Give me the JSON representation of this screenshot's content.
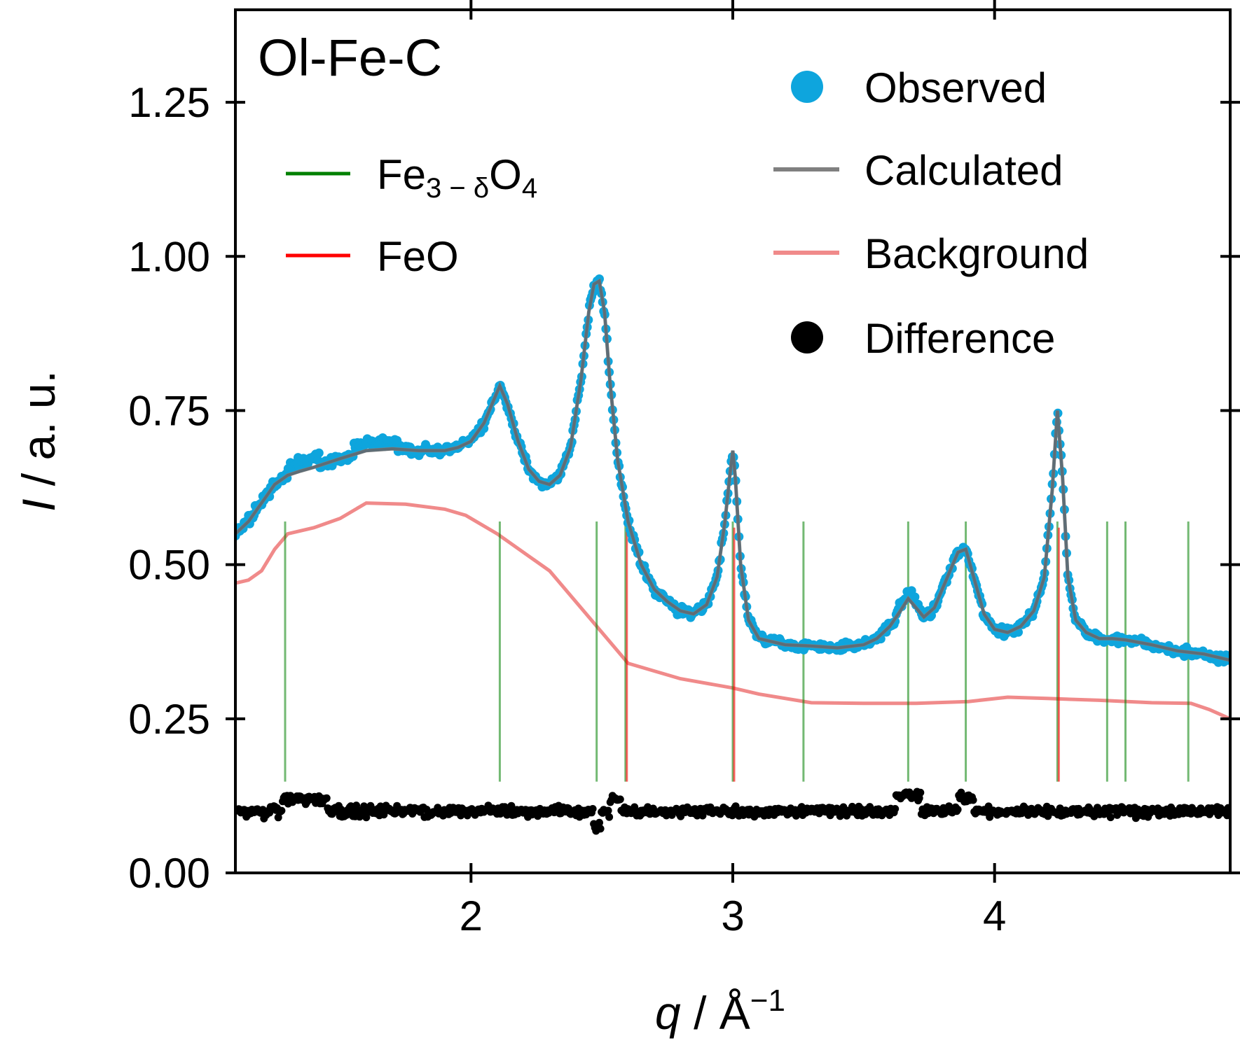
{
  "chart_data": {
    "type": "scatter",
    "panel_label": "Ol-Fe-C",
    "xlabel": {
      "symbol": "q",
      "sep": " / ",
      "unit": "Å",
      "exp": "−1"
    },
    "ylabel": {
      "symbol": "I",
      "sep": " / ",
      "unit": "a. u."
    },
    "xlim": [
      1.1,
      4.9
    ],
    "ylim": [
      0.0,
      1.4
    ],
    "x_ticks": [
      2,
      3,
      4
    ],
    "x_tick_labels": [
      "2",
      "3",
      "4"
    ],
    "y_ticks": [
      0.0,
      0.25,
      0.5,
      0.75,
      1.0,
      1.25
    ],
    "y_tick_labels": [
      "0.00",
      "0.25",
      "0.50",
      "0.75",
      "1.00",
      "1.25"
    ],
    "grid": false,
    "legend_left": [
      {
        "label": "Fe",
        "sub": "3 − δ",
        "tail": "O",
        "sub2": "4",
        "color": "#008000",
        "kind": "line"
      },
      {
        "label": "FeO",
        "sub": "",
        "tail": "",
        "sub2": "",
        "color": "#ff0000",
        "kind": "line"
      }
    ],
    "legend_right": [
      {
        "label": "Observed",
        "color": "#0ea5dd",
        "kind": "marker"
      },
      {
        "label": "Calculated",
        "color": "#808080",
        "kind": "line"
      },
      {
        "label": "Background",
        "color": "#f08a8a",
        "kind": "line"
      },
      {
        "label": "Difference",
        "color": "#000000",
        "kind": "marker"
      }
    ],
    "colors": {
      "observed": "#0ea5dd",
      "calculated": "#808080",
      "background": "#f08a8a",
      "difference": "#000000",
      "fe3o4_ticks": "#008000",
      "feo_ticks": "#ff0000"
    },
    "calculated": {
      "x": [
        1.1,
        1.15,
        1.2,
        1.25,
        1.3,
        1.35,
        1.4,
        1.5,
        1.6,
        1.7,
        1.8,
        1.9,
        1.95,
        2.0,
        2.05,
        2.08,
        2.11,
        2.14,
        2.18,
        2.22,
        2.26,
        2.3,
        2.34,
        2.38,
        2.42,
        2.45,
        2.47,
        2.49,
        2.51,
        2.53,
        2.56,
        2.6,
        2.65,
        2.7,
        2.75,
        2.8,
        2.85,
        2.9,
        2.94,
        2.97,
        2.99,
        3.0,
        3.01,
        3.03,
        3.06,
        3.1,
        3.2,
        3.3,
        3.4,
        3.5,
        3.55,
        3.6,
        3.64,
        3.67,
        3.7,
        3.73,
        3.77,
        3.82,
        3.86,
        3.89,
        3.92,
        3.96,
        4.0,
        4.05,
        4.1,
        4.15,
        4.19,
        4.22,
        4.24,
        4.26,
        4.28,
        4.31,
        4.35,
        4.4,
        4.45,
        4.5,
        4.6,
        4.7,
        4.8,
        4.9
      ],
      "y": [
        0.55,
        0.57,
        0.6,
        0.63,
        0.645,
        0.652,
        0.658,
        0.672,
        0.685,
        0.688,
        0.685,
        0.685,
        0.69,
        0.7,
        0.73,
        0.76,
        0.79,
        0.76,
        0.7,
        0.655,
        0.635,
        0.63,
        0.645,
        0.69,
        0.8,
        0.91,
        0.955,
        0.96,
        0.91,
        0.8,
        0.67,
        0.57,
        0.5,
        0.46,
        0.44,
        0.425,
        0.42,
        0.435,
        0.48,
        0.57,
        0.65,
        0.685,
        0.64,
        0.5,
        0.41,
        0.38,
        0.37,
        0.368,
        0.365,
        0.37,
        0.38,
        0.4,
        0.425,
        0.445,
        0.43,
        0.415,
        0.43,
        0.48,
        0.52,
        0.525,
        0.48,
        0.42,
        0.395,
        0.39,
        0.4,
        0.425,
        0.48,
        0.62,
        0.75,
        0.64,
        0.48,
        0.41,
        0.39,
        0.38,
        0.38,
        0.378,
        0.37,
        0.36,
        0.355,
        0.345
      ]
    },
    "background": {
      "x": [
        1.1,
        1.15,
        1.2,
        1.25,
        1.3,
        1.4,
        1.5,
        1.6,
        1.75,
        1.9,
        1.98,
        2.1,
        2.3,
        2.5,
        2.6,
        2.8,
        3.0,
        3.1,
        3.3,
        3.5,
        3.7,
        3.9,
        4.05,
        4.2,
        4.4,
        4.6,
        4.75,
        4.82,
        4.9
      ],
      "y": [
        0.47,
        0.475,
        0.49,
        0.525,
        0.55,
        0.56,
        0.575,
        0.6,
        0.598,
        0.59,
        0.58,
        0.55,
        0.49,
        0.39,
        0.34,
        0.315,
        0.3,
        0.29,
        0.276,
        0.275,
        0.275,
        0.278,
        0.285,
        0.283,
        0.28,
        0.276,
        0.275,
        0.265,
        0.25
      ]
    },
    "fe3o4_reflections": [
      1.29,
      2.11,
      2.48,
      2.59,
      3.0,
      3.27,
      3.67,
      3.89,
      4.24,
      4.43,
      4.5,
      4.74
    ],
    "fe3o4_tick_range": [
      0.148,
      0.57
    ],
    "feo_reflections": [
      2.59,
      3.0,
      4.24
    ],
    "feo_tick_range": [
      0.148,
      0.56
    ],
    "difference_baseline": 0.1
  }
}
